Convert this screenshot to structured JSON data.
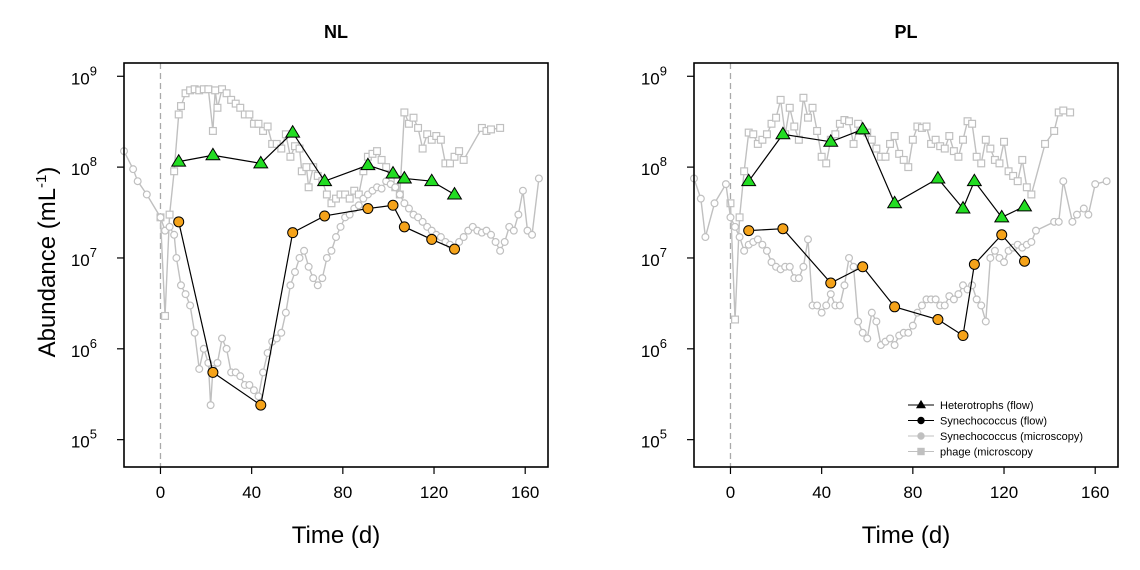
{
  "figure": {
    "ylabel_main": "Abundance (mL",
    "ylabel_sup": "-1",
    "ylabel_close": ")",
    "ylabel_placement": "left of first panel, shared"
  },
  "chart_data": [
    {
      "type": "line",
      "title": "NL",
      "xlabel": "Time (d)",
      "ylabel": "Abundance (mL-1)",
      "y_scale": "log10",
      "xlim": [
        -16,
        170
      ],
      "ylim": [
        50000,
        1400000000
      ],
      "x_ticks": [
        0,
        40,
        80,
        120,
        160
      ],
      "x_tick_labels": [
        "0",
        "40",
        "80",
        "120",
        "160"
      ],
      "y_ticks": [
        100000,
        1000000,
        10000000,
        100000000,
        1000000000
      ],
      "y_tick_labels": [
        {
          "base": "10",
          "exp": "5"
        },
        {
          "base": "10",
          "exp": "6"
        },
        {
          "base": "10",
          "exp": "7"
        },
        {
          "base": "10",
          "exp": "8"
        },
        {
          "base": "10",
          "exp": "9"
        }
      ],
      "reference_line_x": 0,
      "grid": false,
      "series": [
        {
          "name": "phage (microscopy",
          "marker": "square",
          "color": "#c0c0c0",
          "fill": "#ffffff",
          "x": [
            0,
            2,
            4,
            6,
            8,
            9,
            11,
            13,
            15,
            17,
            19,
            21,
            23,
            24,
            25,
            27,
            29,
            31,
            33,
            35,
            37,
            39,
            41,
            43,
            45,
            47,
            49,
            51,
            53,
            55,
            57,
            59,
            61,
            62,
            64,
            65,
            67,
            69,
            71,
            73,
            75,
            77,
            79,
            81,
            83,
            85,
            87,
            89,
            91,
            93,
            95,
            97,
            99,
            101,
            103,
            105,
            107,
            109,
            111,
            113,
            115,
            117,
            119,
            121,
            123,
            125,
            127,
            129,
            131,
            133,
            141,
            143,
            145,
            149
          ],
          "y": [
            28000000,
            2300000,
            30000000,
            90000000,
            380000000,
            470000000,
            650000000,
            700000000,
            720000000,
            700000000,
            720000000,
            720000000,
            250000000,
            700000000,
            450000000,
            720000000,
            650000000,
            550000000,
            500000000,
            450000000,
            380000000,
            380000000,
            300000000,
            300000000,
            250000000,
            280000000,
            180000000,
            180000000,
            160000000,
            230000000,
            130000000,
            170000000,
            160000000,
            90000000,
            100000000,
            60000000,
            100000000,
            80000000,
            70000000,
            50000000,
            40000000,
            45000000,
            50000000,
            50000000,
            45000000,
            55000000,
            50000000,
            90000000,
            130000000,
            140000000,
            150000000,
            120000000,
            100000000,
            70000000,
            60000000,
            50000000,
            400000000,
            300000000,
            350000000,
            270000000,
            160000000,
            230000000,
            200000000,
            220000000,
            200000000,
            110000000,
            110000000,
            130000000,
            150000000,
            120000000,
            270000000,
            250000000,
            260000000,
            270000000
          ]
        },
        {
          "name": "Synechococcus (microscopy)",
          "marker": "circle",
          "color": "#c0c0c0",
          "fill": "#ffffff",
          "x": [
            -16,
            -12,
            -10,
            -6,
            0,
            2,
            4,
            6,
            7,
            9,
            11,
            13,
            15,
            17,
            19,
            21,
            22,
            23,
            25,
            27,
            29,
            31,
            33,
            35,
            37,
            39,
            41,
            43,
            45,
            47,
            49,
            51,
            53,
            55,
            57,
            59,
            61,
            63,
            65,
            67,
            69,
            71,
            73,
            75,
            77,
            79,
            81,
            83,
            85,
            87,
            89,
            91,
            93,
            95,
            97,
            99,
            101,
            103,
            105,
            107,
            109,
            111,
            113,
            115,
            117,
            119,
            121,
            123,
            125,
            127,
            129,
            131,
            133,
            135,
            137,
            139,
            141,
            143,
            145,
            147,
            149,
            151,
            153,
            155,
            157,
            159,
            161,
            163,
            166
          ],
          "y": [
            150000000,
            95000000,
            70000000,
            50000000,
            28000000,
            20000000,
            22000000,
            18000000,
            10000000,
            5000000,
            4000000,
            3000000,
            1500000,
            600000,
            1000000,
            700000,
            240000,
            600000,
            700000,
            1300000,
            1000000,
            550000,
            550000,
            500000,
            400000,
            400000,
            350000,
            300000,
            550000,
            900000,
            1200000,
            1300000,
            1500000,
            2500000,
            5000000,
            7000000,
            10000000,
            12000000,
            8000000,
            6000000,
            5000000,
            6000000,
            10000000,
            12000000,
            17000000,
            22000000,
            28000000,
            30000000,
            35000000,
            38000000,
            45000000,
            50000000,
            55000000,
            60000000,
            58000000,
            70000000,
            65000000,
            60000000,
            50000000,
            40000000,
            35000000,
            30000000,
            28000000,
            25000000,
            22000000,
            20000000,
            18000000,
            17000000,
            15000000,
            14000000,
            13000000,
            15000000,
            17000000,
            20000000,
            22000000,
            20000000,
            19000000,
            20000000,
            18000000,
            15000000,
            12000000,
            15000000,
            22000000,
            20000000,
            30000000,
            55000000,
            20000000,
            18000000,
            75000000
          ]
        },
        {
          "name": "Heterotrophs (flow)",
          "marker": "triangle",
          "color": "#000000",
          "fill": "#22dd22",
          "x": [
            8,
            23,
            44,
            58,
            72,
            91,
            102,
            107,
            119,
            129
          ],
          "y": [
            115000000,
            135000000,
            110000000,
            240000000,
            70000000,
            105000000,
            85000000,
            75000000,
            70000000,
            50000000
          ]
        },
        {
          "name": "Synechococcus (flow)",
          "marker": "circle",
          "color": "#000000",
          "fill": "#f5a31a",
          "x": [
            8,
            23,
            44,
            58,
            72,
            91,
            102,
            107,
            119,
            129
          ],
          "y": [
            25000000,
            550000,
            240000,
            19000000,
            29000000,
            35000000,
            38000000,
            22000000,
            16000000,
            12500000
          ]
        }
      ]
    },
    {
      "type": "line",
      "title": "PL",
      "xlabel": "Time (d)",
      "y_scale": "log10",
      "xlim": [
        -16,
        170
      ],
      "ylim": [
        50000,
        1400000000
      ],
      "x_ticks": [
        0,
        40,
        80,
        120,
        160
      ],
      "x_tick_labels": [
        "0",
        "40",
        "80",
        "120",
        "160"
      ],
      "y_ticks": [
        100000,
        1000000,
        10000000,
        100000000,
        1000000000
      ],
      "y_tick_labels": [
        {
          "base": "10",
          "exp": "5"
        },
        {
          "base": "10",
          "exp": "6"
        },
        {
          "base": "10",
          "exp": "7"
        },
        {
          "base": "10",
          "exp": "8"
        },
        {
          "base": "10",
          "exp": "9"
        }
      ],
      "reference_line_x": 0,
      "grid": false,
      "legend_position": "bottom-right",
      "series": [
        {
          "name": "phage (microscopy",
          "marker": "square",
          "color": "#c0c0c0",
          "fill": "#ffffff",
          "x": [
            0,
            2,
            4,
            6,
            8,
            10,
            12,
            14,
            16,
            18,
            20,
            22,
            24,
            26,
            28,
            30,
            32,
            34,
            36,
            38,
            40,
            42,
            44,
            46,
            48,
            50,
            52,
            54,
            56,
            58,
            60,
            62,
            64,
            66,
            68,
            70,
            72,
            74,
            76,
            78,
            80,
            82,
            84,
            86,
            88,
            90,
            92,
            94,
            96,
            98,
            100,
            102,
            104,
            106,
            108,
            110,
            112,
            114,
            116,
            118,
            120,
            122,
            124,
            126,
            128,
            130,
            132,
            138,
            142,
            144,
            146,
            149
          ],
          "y": [
            40000000,
            2100000,
            28000000,
            90000000,
            240000000,
            230000000,
            180000000,
            200000000,
            230000000,
            300000000,
            350000000,
            550000000,
            230000000,
            450000000,
            280000000,
            200000000,
            580000000,
            350000000,
            450000000,
            250000000,
            130000000,
            110000000,
            200000000,
            230000000,
            300000000,
            330000000,
            320000000,
            180000000,
            300000000,
            250000000,
            240000000,
            200000000,
            160000000,
            130000000,
            130000000,
            180000000,
            220000000,
            140000000,
            120000000,
            100000000,
            200000000,
            280000000,
            270000000,
            280000000,
            180000000,
            200000000,
            170000000,
            160000000,
            220000000,
            150000000,
            130000000,
            200000000,
            320000000,
            300000000,
            130000000,
            110000000,
            200000000,
            160000000,
            120000000,
            110000000,
            190000000,
            90000000,
            80000000,
            70000000,
            120000000,
            60000000,
            50000000,
            180000000,
            250000000,
            400000000,
            420000000,
            400000000
          ]
        },
        {
          "name": "Synechococcus (microscopy)",
          "marker": "circle",
          "color": "#c0c0c0",
          "fill": "#ffffff",
          "x": [
            -16,
            -13,
            -11,
            -7,
            -2,
            0,
            2,
            4,
            6,
            8,
            10,
            12,
            14,
            16,
            18,
            20,
            22,
            24,
            26,
            28,
            30,
            32,
            34,
            36,
            38,
            40,
            42,
            44,
            46,
            48,
            50,
            52,
            54,
            56,
            58,
            60,
            62,
            64,
            66,
            68,
            70,
            72,
            74,
            76,
            78,
            80,
            82,
            84,
            86,
            88,
            90,
            92,
            94,
            96,
            98,
            100,
            102,
            104,
            106,
            108,
            110,
            112,
            114,
            116,
            118,
            120,
            122,
            124,
            126,
            128,
            130,
            132,
            134,
            142,
            144,
            146,
            150,
            152,
            155,
            157,
            160,
            165
          ],
          "y": [
            75000000,
            45000000,
            17000000,
            40000000,
            65000000,
            28000000,
            22000000,
            17000000,
            12000000,
            14000000,
            15000000,
            16000000,
            14000000,
            12000000,
            9000000,
            8000000,
            7500000,
            8000000,
            8000000,
            6000000,
            6000000,
            8000000,
            16000000,
            3000000,
            3000000,
            2500000,
            3000000,
            4000000,
            3000000,
            3000000,
            5000000,
            10000000,
            8000000,
            2000000,
            1500000,
            1300000,
            2500000,
            2000000,
            1100000,
            1200000,
            1300000,
            1100000,
            1400000,
            1500000,
            1500000,
            1800000,
            2500000,
            3000000,
            3500000,
            3500000,
            3500000,
            3000000,
            3000000,
            3800000,
            3500000,
            4000000,
            5000000,
            4500000,
            5000000,
            3500000,
            3000000,
            2000000,
            10000000,
            12000000,
            10000000,
            9000000,
            12000000,
            13000000,
            14000000,
            13000000,
            14000000,
            15000000,
            20000000,
            25000000,
            25000000,
            70000000,
            25000000,
            30000000,
            35000000,
            30000000,
            65000000,
            70000000
          ]
        },
        {
          "name": "Heterotrophs (flow)",
          "marker": "triangle",
          "color": "#000000",
          "fill": "#22dd22",
          "x": [
            8,
            23,
            44,
            58,
            72,
            91,
            102,
            107,
            119,
            129
          ],
          "y": [
            70000000,
            230000000,
            190000000,
            260000000,
            40000000,
            75000000,
            35000000,
            70000000,
            28000000,
            37000000
          ]
        },
        {
          "name": "Synechococcus (flow)",
          "marker": "circle",
          "color": "#000000",
          "fill": "#f5a31a",
          "x": [
            8,
            23,
            44,
            58,
            72,
            91,
            102,
            107,
            119,
            129
          ],
          "y": [
            20000000,
            21000000,
            5300000,
            8000000,
            2900000,
            2100000,
            1400000,
            8500000,
            18000000,
            9200000
          ]
        }
      ],
      "legend": [
        {
          "label": "Heterotrophs (flow)",
          "marker": "triangle",
          "color": "#000000"
        },
        {
          "label": "Synechococcus (flow)",
          "marker": "circle",
          "color": "#000000"
        },
        {
          "label": "Synechococcus (microscopy)",
          "marker": "circle",
          "color": "#c0c0c0"
        },
        {
          "label": "phage (microscopy",
          "marker": "square",
          "color": "#c0c0c0"
        }
      ]
    }
  ]
}
